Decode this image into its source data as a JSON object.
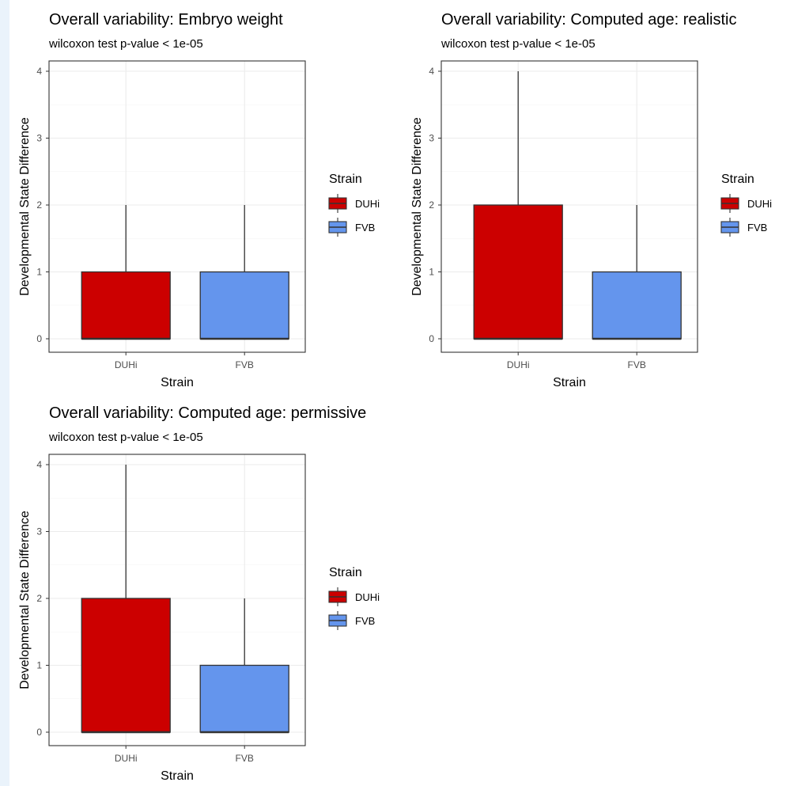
{
  "chart_data": [
    {
      "type": "boxplot",
      "title": "Overall variability: Embryo weight",
      "subtitle": "wilcoxon test p-value <  1e-05",
      "xlabel": "Strain",
      "ylabel": "Developmental State Difference",
      "categories": [
        "DUHi",
        "FVB"
      ],
      "ylim": [
        0,
        4
      ],
      "yticks": [
        "0",
        "1",
        "2",
        "3",
        "4"
      ],
      "grid": true,
      "legend": {
        "title": "Strain",
        "position": "right",
        "entries": [
          "DUHi",
          "FVB"
        ]
      },
      "colors": {
        "DUHi": "#cc0000",
        "FVB": "#6495ed"
      },
      "boxes": [
        {
          "name": "DUHi",
          "min": 0,
          "q1": 0,
          "median": 0,
          "q3": 1,
          "max": 2
        },
        {
          "name": "FVB",
          "min": 0,
          "q1": 0,
          "median": 0,
          "q3": 1,
          "max": 2
        }
      ]
    },
    {
      "type": "boxplot",
      "title": "Overall variability: Computed age: realistic",
      "subtitle": "wilcoxon test p-value <  1e-05",
      "xlabel": "Strain",
      "ylabel": "Developmental State Difference",
      "categories": [
        "DUHi",
        "FVB"
      ],
      "ylim": [
        0,
        4
      ],
      "yticks": [
        "0",
        "1",
        "2",
        "3",
        "4"
      ],
      "grid": true,
      "legend": {
        "title": "Strain",
        "position": "right",
        "entries": [
          "DUHi",
          "FVB"
        ]
      },
      "colors": {
        "DUHi": "#cc0000",
        "FVB": "#6495ed"
      },
      "boxes": [
        {
          "name": "DUHi",
          "min": 0,
          "q1": 0,
          "median": 0,
          "q3": 2,
          "max": 4
        },
        {
          "name": "FVB",
          "min": 0,
          "q1": 0,
          "median": 0,
          "q3": 1,
          "max": 2
        }
      ]
    },
    {
      "type": "boxplot",
      "title": "Overall variability: Computed age: permissive",
      "subtitle": "wilcoxon test p-value <  1e-05",
      "xlabel": "Strain",
      "ylabel": "Developmental State Difference",
      "categories": [
        "DUHi",
        "FVB"
      ],
      "ylim": [
        0,
        4
      ],
      "yticks": [
        "0",
        "1",
        "2",
        "3",
        "4"
      ],
      "grid": true,
      "legend": {
        "title": "Strain",
        "position": "right",
        "entries": [
          "DUHi",
          "FVB"
        ]
      },
      "colors": {
        "DUHi": "#cc0000",
        "FVB": "#6495ed"
      },
      "boxes": [
        {
          "name": "DUHi",
          "min": 0,
          "q1": 0,
          "median": 0,
          "q3": 2,
          "max": 4
        },
        {
          "name": "FVB",
          "min": 0,
          "q1": 0,
          "median": 0,
          "q3": 1,
          "max": 2
        }
      ]
    }
  ]
}
